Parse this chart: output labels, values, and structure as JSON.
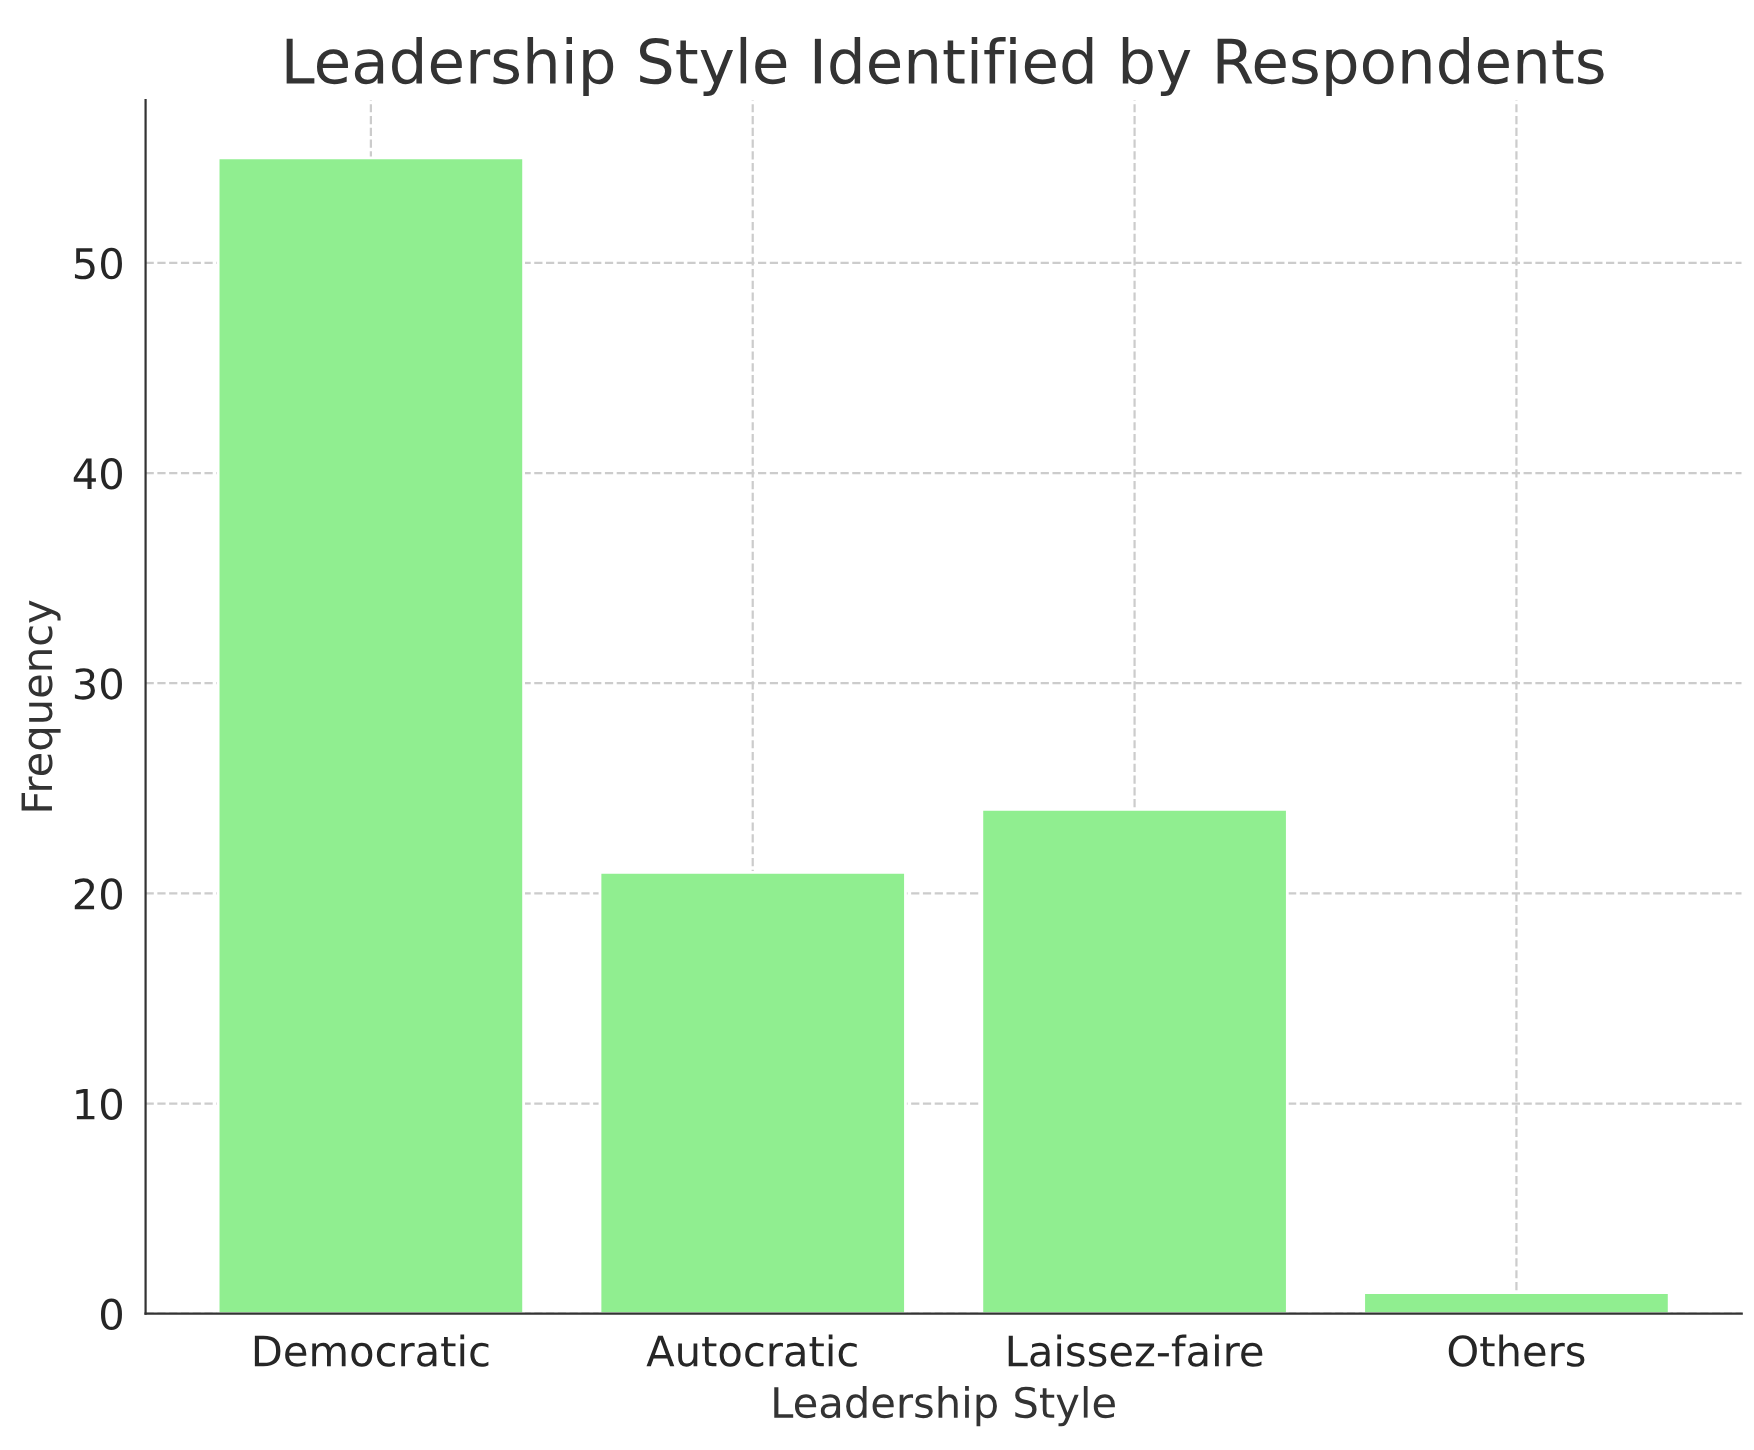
{
  "chart_data": {
    "type": "bar",
    "title": "Leadership Style Identified by Respondents",
    "xlabel": "Leadership Style",
    "ylabel": "Frequency",
    "categories": [
      "Democratic",
      "Autocratic",
      "Laissez-faire",
      "Others"
    ],
    "values": [
      55,
      21,
      24,
      1
    ],
    "color": "#90ee90",
    "ylim": [
      0,
      57.75
    ],
    "yticks": [
      0,
      10,
      20,
      30,
      40,
      50
    ],
    "grid": true
  }
}
